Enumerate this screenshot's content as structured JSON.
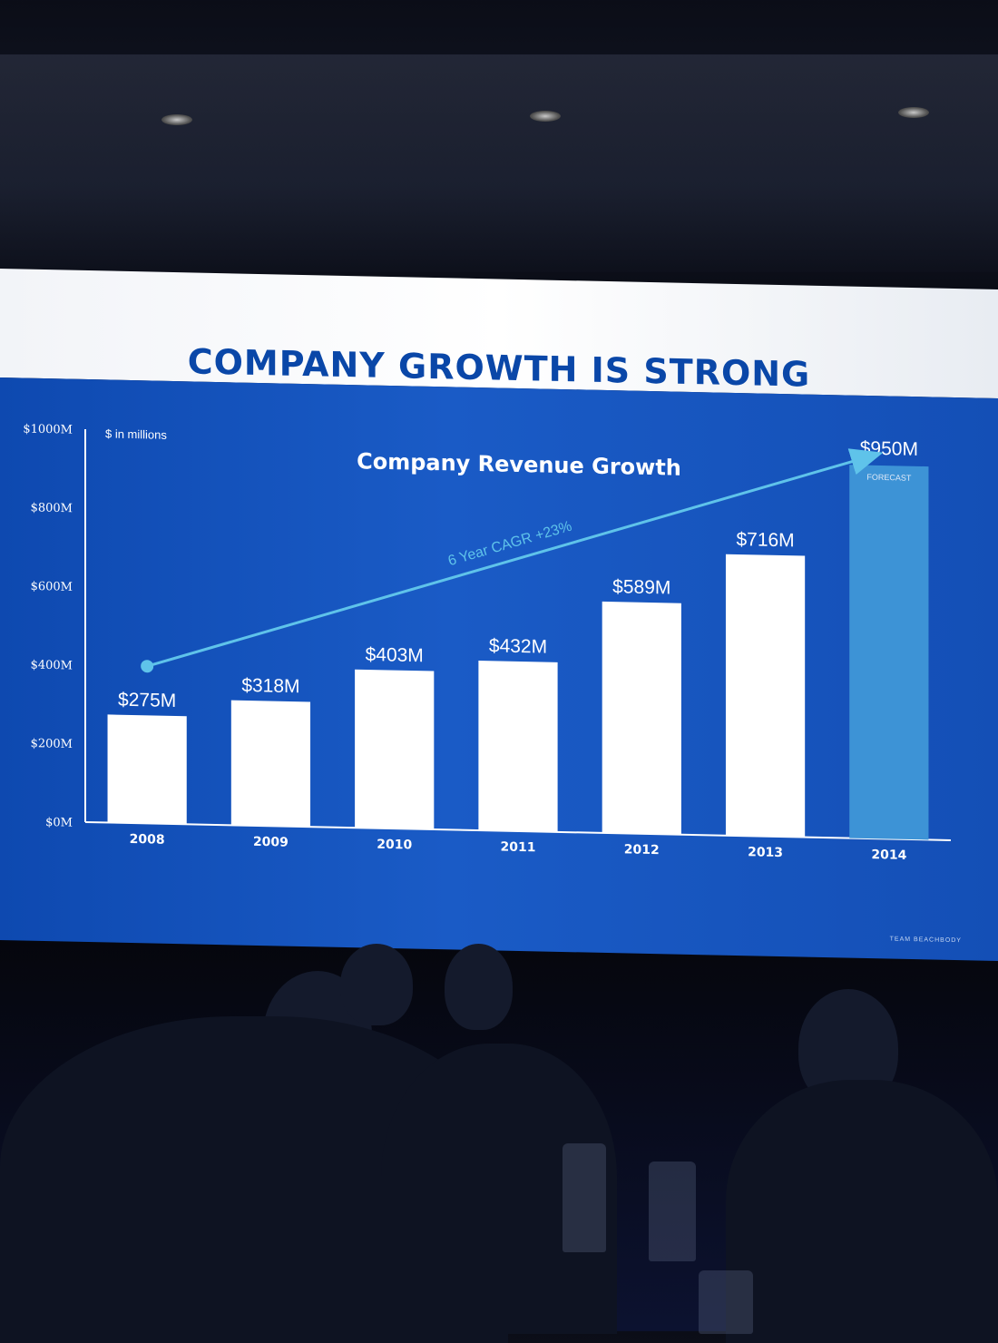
{
  "slide": {
    "title": "COMPANY GROWTH IS STRONG",
    "brand": "TEAM BEACHBODY"
  },
  "colors": {
    "title_blue": "#0a47a8",
    "slide_background": "#1553bd",
    "bar_color": "#ffffff",
    "forecast_bar_color": "#3d93d6",
    "trend_color": "#5fc3ea"
  },
  "chart_data": {
    "type": "bar",
    "title": "Company Revenue Growth",
    "units_label": "$ in millions",
    "categories": [
      "2008",
      "2009",
      "2010",
      "2011",
      "2012",
      "2013",
      "2014"
    ],
    "values": [
      275,
      318,
      403,
      432,
      589,
      716,
      950
    ],
    "value_labels": [
      "$275M",
      "$318M",
      "$403M",
      "$432M",
      "$589M",
      "$716M",
      "$950M"
    ],
    "forecast_flags": [
      false,
      false,
      false,
      false,
      false,
      false,
      true
    ],
    "forecast_label": "FORECAST",
    "ylim": [
      0,
      1000
    ],
    "yticks": [
      0,
      200,
      400,
      600,
      800,
      1000
    ],
    "ytick_labels": [
      "$0M",
      "$200M",
      "$400M",
      "$600M",
      "$800M",
      "$1000M"
    ],
    "trend_annotation": "6 Year CAGR +23%",
    "trend": {
      "from_value": 400,
      "to_value": 1000
    },
    "grid": false,
    "legend": "none"
  }
}
